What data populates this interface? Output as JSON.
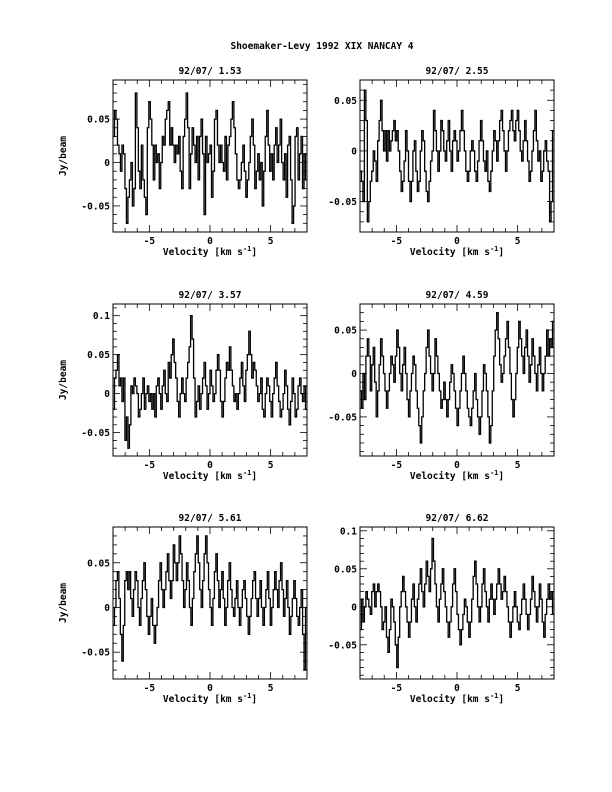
{
  "header": {
    "title": "Shoemaker-Levy 1992 XIX   NANCAY     4"
  },
  "chart_data": [
    {
      "type": "line",
      "title": "92/07/ 1.53",
      "xlabel": "Velocity [km s⁻¹]",
      "ylabel": "Jy/beam",
      "xlim": [
        -8,
        8
      ],
      "ylim": [
        -0.08,
        0.095
      ],
      "xticks": [
        -5,
        0,
        5
      ],
      "yticks": [
        -0.05,
        0,
        0.05
      ],
      "ytick_labels": [
        "-0.05",
        "0",
        "0.05"
      ],
      "series": [
        {
          "values": [
            0.03,
            0.06,
            0.05,
            0.02,
            0.01,
            -0.01,
            0.02,
            0.01,
            -0.03,
            -0.07,
            -0.04,
            -0.02,
            0.0,
            -0.05,
            -0.03,
            0.08,
            0.04,
            -0.01,
            -0.03,
            0.02,
            -0.02,
            -0.04,
            -0.06,
            0.04,
            0.07,
            0.05,
            0.02,
            -0.02,
            0.02,
            0.0,
            0.01,
            -0.03,
            0.0,
            0.03,
            0.02,
            0.05,
            0.06,
            0.07,
            0.02,
            0.04,
            0.02,
            0.0,
            0.02,
            0.01,
            0.03,
            -0.01,
            -0.03,
            0.03,
            0.05,
            0.08,
            0.04,
            -0.03,
            0.01,
            0.04,
            0.02,
            0.0,
            0.03,
            -0.02,
            0.03,
            0.05,
            0.01,
            -0.06,
            0.03,
            0.0,
            0.01,
            0.02,
            -0.04,
            -0.01,
            0.05,
            0.06,
            0.02,
            0.0,
            0.02,
            0.0,
            -0.01,
            0.03,
            -0.02,
            0.02,
            0.03,
            0.05,
            0.07,
            0.04,
            0.01,
            -0.02,
            -0.03,
            -0.02,
            0.0,
            0.02,
            -0.01,
            -0.04,
            -0.02,
            0.0,
            0.03,
            0.05,
            0.02,
            -0.03,
            -0.01,
            0.01,
            -0.02,
            0.0,
            -0.05,
            -0.01,
            0.03,
            0.06,
            0.02,
            -0.01,
            0.01,
            -0.02,
            0.02,
            0.04,
            0.0,
            0.02,
            0.05,
            0.0,
            -0.02,
            0.01,
            -0.04,
            0.02,
            0.03,
            -0.02,
            -0.07,
            -0.05,
            0.03,
            0.04,
            -0.02,
            0.01,
            0.03,
            -0.03,
            0.01,
            -0.02
          ]
        }
      ]
    },
    {
      "type": "line",
      "title": "92/07/ 2.55",
      "xlabel": "Velocity [km s⁻¹]",
      "ylabel": "",
      "xlim": [
        -8,
        8
      ],
      "ylim": [
        -0.08,
        0.07
      ],
      "xticks": [
        -5,
        0,
        5
      ],
      "yticks": [
        -0.05,
        0,
        0.05
      ],
      "ytick_labels": [
        "-0.05",
        "0",
        "0.05"
      ],
      "series": [
        {
          "values": [
            -0.02,
            -0.03,
            -0.05,
            0.06,
            0.03,
            -0.07,
            -0.05,
            -0.03,
            -0.02,
            0.0,
            -0.01,
            -0.03,
            0.01,
            0.03,
            0.05,
            0.02,
            0.0,
            0.02,
            -0.01,
            0.02,
            0.0,
            0.01,
            0.02,
            0.03,
            0.01,
            0.02,
            0.0,
            -0.02,
            -0.04,
            -0.03,
            -0.01,
            0.02,
            0.0,
            -0.03,
            -0.05,
            -0.03,
            0.0,
            0.01,
            -0.02,
            -0.04,
            -0.03,
            0.0,
            0.02,
            0.01,
            -0.02,
            -0.04,
            -0.05,
            -0.03,
            -0.01,
            0.0,
            0.04,
            0.02,
            0.0,
            -0.02,
            0.0,
            0.03,
            0.02,
            0.0,
            -0.01,
            0.01,
            0.03,
            0.0,
            -0.02,
            0.01,
            0.02,
            0.01,
            -0.01,
            0.0,
            0.02,
            0.04,
            0.02,
            0.0,
            -0.02,
            -0.03,
            -0.02,
            0.0,
            0.01,
            0.0,
            -0.02,
            -0.03,
            -0.01,
            0.01,
            0.03,
            0.01,
            -0.01,
            -0.02,
            0.0,
            -0.03,
            -0.04,
            -0.02,
            0.0,
            0.02,
            0.01,
            -0.01,
            0.01,
            0.03,
            0.04,
            0.02,
            0.0,
            -0.02,
            0.0,
            0.02,
            0.03,
            0.04,
            0.02,
            0.01,
            0.03,
            0.04,
            0.02,
            0.0,
            -0.01,
            0.01,
            0.03,
            0.01,
            -0.01,
            -0.03,
            -0.02,
            0.0,
            0.02,
            0.04,
            0.01,
            -0.01,
            0.0,
            -0.03,
            -0.02,
            0.0,
            0.01,
            -0.01,
            -0.02,
            -0.07,
            -0.05,
            0.02
          ]
        }
      ]
    },
    {
      "type": "line",
      "title": "92/07/ 3.57",
      "xlabel": "Velocity [km s⁻¹]",
      "ylabel": "Jy/beam",
      "xlim": [
        -8,
        8
      ],
      "ylim": [
        -0.08,
        0.115
      ],
      "xticks": [
        -5,
        0,
        5
      ],
      "yticks": [
        -0.05,
        0,
        0.05,
        0.1
      ],
      "ytick_labels": [
        "-0.05",
        "0",
        "0.05",
        "0.1"
      ],
      "series": [
        {
          "values": [
            -0.02,
            0.02,
            0.03,
            0.05,
            0.01,
            0.02,
            -0.01,
            0.02,
            -0.06,
            -0.03,
            -0.07,
            -0.04,
            0.01,
            0.0,
            0.02,
            0.01,
            0.0,
            -0.03,
            -0.02,
            0.0,
            0.02,
            -0.02,
            0.0,
            0.01,
            -0.01,
            0.0,
            -0.02,
            0.0,
            -0.03,
            0.01,
            0.02,
            0.0,
            -0.02,
            0.01,
            0.03,
            0.0,
            -0.01,
            0.04,
            0.02,
            0.05,
            0.07,
            0.04,
            0.02,
            -0.01,
            -0.03,
            0.0,
            0.02,
            0.0,
            -0.01,
            0.02,
            0.04,
            0.06,
            0.1,
            0.07,
            0.02,
            -0.03,
            -0.01,
            0.01,
            -0.02,
            0.0,
            0.02,
            0.04,
            0.01,
            -0.02,
            0.0,
            0.03,
            0.01,
            -0.01,
            0.0,
            0.03,
            0.05,
            0.03,
            -0.01,
            -0.03,
            -0.01,
            0.02,
            0.04,
            0.03,
            0.06,
            0.03,
            0.01,
            -0.01,
            0.0,
            -0.02,
            0.0,
            0.02,
            0.04,
            0.01,
            -0.01,
            0.03,
            0.05,
            0.08,
            0.05,
            0.02,
            0.04,
            0.03,
            0.01,
            -0.01,
            0.0,
            0.02,
            -0.02,
            -0.03,
            0.0,
            0.02,
            0.01,
            -0.01,
            -0.03,
            0.0,
            0.02,
            0.04,
            0.01,
            -0.01,
            -0.03,
            -0.02,
            0.0,
            0.03,
            0.01,
            -0.02,
            -0.04,
            -0.01,
            0.02,
            0.0,
            -0.03,
            -0.02,
            0.01,
            0.02,
            0.0,
            -0.01,
            0.01,
            -0.02
          ]
        }
      ]
    },
    {
      "type": "line",
      "title": "92/07/ 4.59",
      "xlabel": "Velocity [km s⁻¹]",
      "ylabel": "",
      "xlim": [
        -8,
        8
      ],
      "ylim": [
        -0.095,
        0.08
      ],
      "xticks": [
        -5,
        0,
        5
      ],
      "yticks": [
        -0.05,
        0,
        0.05
      ],
      "ytick_labels": [
        "-0.05",
        "0",
        "0.05"
      ],
      "series": [
        {
          "values": [
            -0.02,
            -0.04,
            0.0,
            -0.03,
            0.02,
            0.04,
            0.02,
            -0.02,
            0.01,
            0.03,
            -0.01,
            -0.05,
            -0.02,
            0.01,
            0.04,
            0.02,
            0.0,
            -0.02,
            -0.04,
            -0.02,
            0.0,
            0.02,
            0.01,
            -0.01,
            0.02,
            0.05,
            0.03,
            0.0,
            -0.02,
            0.01,
            0.03,
            0.0,
            -0.03,
            -0.05,
            -0.02,
            0.0,
            0.02,
            0.01,
            -0.02,
            -0.04,
            -0.06,
            -0.08,
            -0.05,
            -0.02,
            0.0,
            0.03,
            0.05,
            0.02,
            0.0,
            -0.02,
            0.0,
            0.04,
            0.02,
            0.0,
            -0.02,
            -0.04,
            -0.03,
            -0.01,
            -0.03,
            -0.05,
            -0.03,
            -0.01,
            0.01,
            0.0,
            -0.02,
            -0.04,
            -0.06,
            -0.04,
            -0.02,
            0.0,
            0.02,
            0.0,
            -0.02,
            -0.04,
            -0.05,
            -0.06,
            -0.04,
            -0.02,
            0.0,
            -0.03,
            -0.05,
            -0.07,
            -0.05,
            -0.02,
            0.01,
            0.0,
            -0.02,
            -0.05,
            -0.08,
            -0.06,
            -0.02,
            0.02,
            0.05,
            0.07,
            0.04,
            0.01,
            -0.01,
            0.0,
            0.02,
            0.04,
            0.06,
            0.03,
            0.0,
            -0.03,
            -0.05,
            -0.03,
            0.0,
            0.03,
            0.06,
            0.04,
            0.02,
            0.0,
            0.03,
            0.05,
            0.02,
            -0.01,
            0.01,
            0.04,
            0.02,
            0.0,
            -0.02,
            0.01,
            0.03,
            0.0,
            -0.02,
            0.0,
            0.02,
            0.05,
            0.02,
            0.04,
            0.03,
            0.06
          ]
        }
      ]
    },
    {
      "type": "line",
      "title": "92/07/ 5.61",
      "xlabel": "Velocity [km s⁻¹]",
      "ylabel": "Jy/beam",
      "xlim": [
        -8,
        8
      ],
      "ylim": [
        -0.08,
        0.09
      ],
      "xticks": [
        -5,
        0,
        5
      ],
      "yticks": [
        -0.05,
        0,
        0.05
      ],
      "ytick_labels": [
        "-0.05",
        "0",
        "0.05"
      ],
      "series": [
        {
          "values": [
            -0.02,
            0.0,
            0.03,
            0.04,
            0.01,
            -0.03,
            -0.06,
            -0.02,
            0.03,
            0.04,
            0.02,
            0.04,
            0.01,
            -0.01,
            0.02,
            0.04,
            0.03,
            0.0,
            -0.02,
            0.01,
            0.03,
            0.05,
            0.02,
            -0.01,
            -0.03,
            -0.01,
            0.01,
            -0.02,
            -0.04,
            -0.02,
            0.0,
            0.03,
            0.05,
            0.02,
            0.0,
            0.02,
            0.04,
            0.06,
            0.03,
            0.01,
            0.03,
            0.07,
            0.05,
            0.03,
            0.05,
            0.08,
            0.06,
            0.03,
            0.0,
            0.02,
            0.05,
            0.03,
            0.0,
            -0.02,
            0.01,
            0.04,
            0.06,
            0.08,
            0.05,
            0.02,
            0.0,
            0.03,
            0.06,
            0.08,
            0.05,
            0.02,
            0.0,
            -0.02,
            0.01,
            0.04,
            0.06,
            0.03,
            0.0,
            0.02,
            0.04,
            0.01,
            -0.02,
            0.0,
            0.03,
            0.05,
            0.02,
            0.0,
            -0.01,
            0.01,
            0.03,
            0.0,
            -0.02,
            0.0,
            0.02,
            0.03,
            0.01,
            -0.01,
            -0.03,
            -0.01,
            0.01,
            0.03,
            0.04,
            0.01,
            -0.01,
            0.01,
            0.03,
            0.0,
            -0.02,
            0.0,
            0.02,
            0.04,
            0.01,
            -0.02,
            0.0,
            0.02,
            0.04,
            0.02,
            0.0,
            0.03,
            0.05,
            0.02,
            -0.01,
            0.01,
            0.03,
            0.0,
            -0.03,
            -0.01,
            0.01,
            0.03,
            0.01,
            -0.01,
            -0.02,
            0.0,
            0.02,
            -0.03,
            -0.07,
            0.0
          ]
        }
      ]
    },
    {
      "type": "line",
      "title": "92/07/ 6.62",
      "xlabel": "Velocity [km s⁻¹]",
      "ylabel": "",
      "xlim": [
        -8,
        8
      ],
      "ylim": [
        -0.095,
        0.105
      ],
      "xticks": [
        -5,
        0,
        5
      ],
      "yticks": [
        -0.05,
        0,
        0.05,
        0.1
      ],
      "ytick_labels": [
        "-0.05",
        "0",
        "0.05",
        "0.1"
      ],
      "series": [
        {
          "values": [
            -0.03,
            0.01,
            -0.02,
            0.0,
            0.02,
            0.01,
            0.0,
            -0.01,
            0.02,
            0.03,
            0.0,
            0.02,
            0.03,
            0.02,
            0.0,
            -0.03,
            -0.02,
            0.0,
            -0.04,
            -0.06,
            -0.03,
            0.01,
            0.0,
            -0.02,
            -0.05,
            -0.08,
            -0.04,
            0.0,
            0.02,
            0.04,
            0.02,
            0.0,
            -0.02,
            -0.04,
            -0.02,
            0.01,
            0.03,
            0.0,
            -0.02,
            0.01,
            0.03,
            0.05,
            0.02,
            0.0,
            0.03,
            0.06,
            0.04,
            0.02,
            0.05,
            0.09,
            0.06,
            0.03,
            0.0,
            -0.02,
            0.01,
            0.03,
            0.05,
            0.02,
            0.0,
            -0.02,
            -0.04,
            -0.02,
            0.0,
            0.03,
            0.05,
            0.02,
            -0.01,
            -0.03,
            -0.05,
            -0.03,
            -0.01,
            0.01,
            0.0,
            -0.02,
            -0.04,
            -0.02,
            0.01,
            0.04,
            0.06,
            0.03,
            0.0,
            -0.02,
            0.0,
            0.03,
            0.05,
            0.02,
            0.0,
            -0.02,
            0.01,
            0.03,
            0.01,
            -0.01,
            0.01,
            0.03,
            0.05,
            0.03,
            0.01,
            0.02,
            0.04,
            0.02,
            0.0,
            -0.02,
            -0.04,
            -0.02,
            0.0,
            0.02,
            0.0,
            -0.02,
            -0.03,
            -0.01,
            0.01,
            0.03,
            0.01,
            -0.01,
            -0.03,
            -0.01,
            0.01,
            0.04,
            0.02,
            0.0,
            -0.02,
            0.0,
            0.03,
            0.01,
            -0.02,
            -0.04,
            -0.01,
            0.01,
            0.03,
            0.01,
            0.02,
            -0.01
          ]
        }
      ]
    }
  ]
}
